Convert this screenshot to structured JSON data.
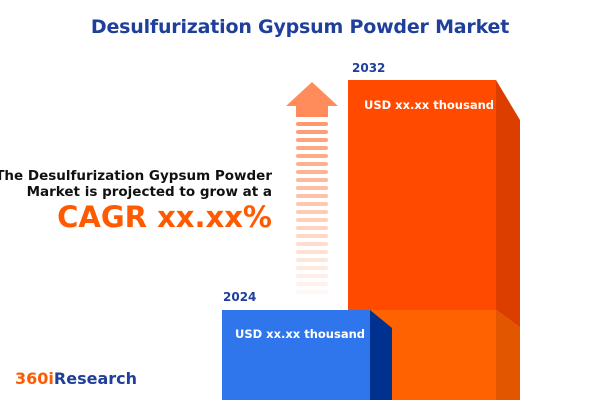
{
  "title": "Desulfurization Gypsum Powder Market",
  "lead_line1": "The Desulfurization Gypsum Powder",
  "lead_line2": "Market is projected to grow at a",
  "cagr": "CAGR xx.xx%",
  "logo": {
    "part1": "360i",
    "part2": "Research"
  },
  "colors": {
    "title": "#1f3f9b",
    "accent": "#ff5a00",
    "bar_2024": "#2f76ec",
    "bar_2032": "#ff4d00"
  },
  "chart_data": {
    "type": "bar",
    "categories": [
      "2024",
      "2032"
    ],
    "value_labels": [
      "USD xx.xx thousand",
      "USD xx.xx thousand"
    ],
    "series": [
      {
        "values": [
          null,
          null
        ]
      }
    ],
    "annotation": "CAGR xx.xx%",
    "legend": "none",
    "grid": false
  }
}
